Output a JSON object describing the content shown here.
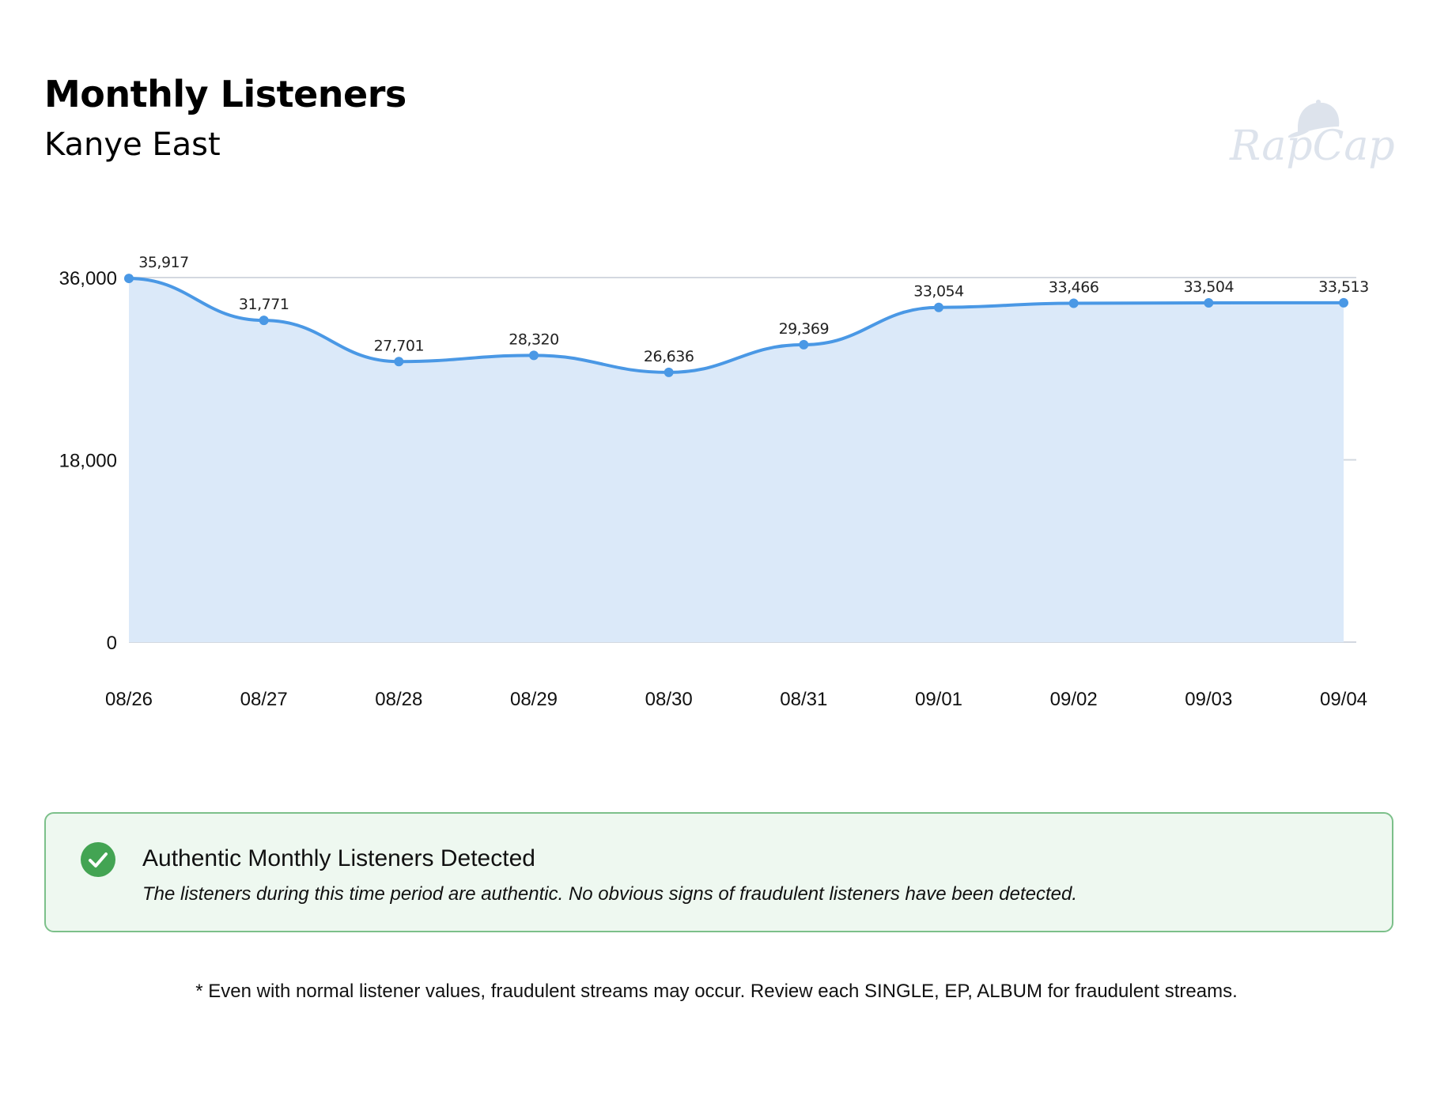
{
  "header": {
    "title": "Monthly Listeners",
    "subtitle": "Kanye East",
    "logo_text": "RapCap"
  },
  "alert": {
    "icon": "check-circle-icon",
    "title": "Authentic Monthly Listeners Detected",
    "text": "The listeners during this time period are authentic. No obvious signs of fraudulent listeners have been detected.",
    "color": "#43a453"
  },
  "footnote": "* Even with normal listener values, fraudulent streams may occur. Review each SINGLE, EP, ALBUM for fraudulent streams.",
  "chart_data": {
    "type": "area",
    "title": "Monthly Listeners",
    "subtitle": "Kanye East",
    "xlabel": "",
    "ylabel": "",
    "categories": [
      "08/26",
      "08/27",
      "08/28",
      "08/29",
      "08/30",
      "08/31",
      "09/01",
      "09/02",
      "09/03",
      "09/04"
    ],
    "series": [
      {
        "name": "Monthly Listeners",
        "values": [
          35917,
          31771,
          27701,
          28320,
          26636,
          29369,
          33054,
          33466,
          33504,
          33513
        ],
        "labels": [
          "35,917",
          "31,771",
          "27,701",
          "28,320",
          "26,636",
          "29,369",
          "33,054",
          "33,466",
          "33,504",
          "33,513"
        ],
        "line_color": "#4a98e5",
        "fill_color": "#dbe9f9"
      }
    ],
    "yticks": [
      0,
      18000,
      36000
    ],
    "ytick_labels": [
      "0",
      "18,000",
      "36,000"
    ],
    "ylim": [
      0,
      36000
    ],
    "grid": true,
    "legend": "none",
    "smooth": true,
    "data_labels": true
  }
}
